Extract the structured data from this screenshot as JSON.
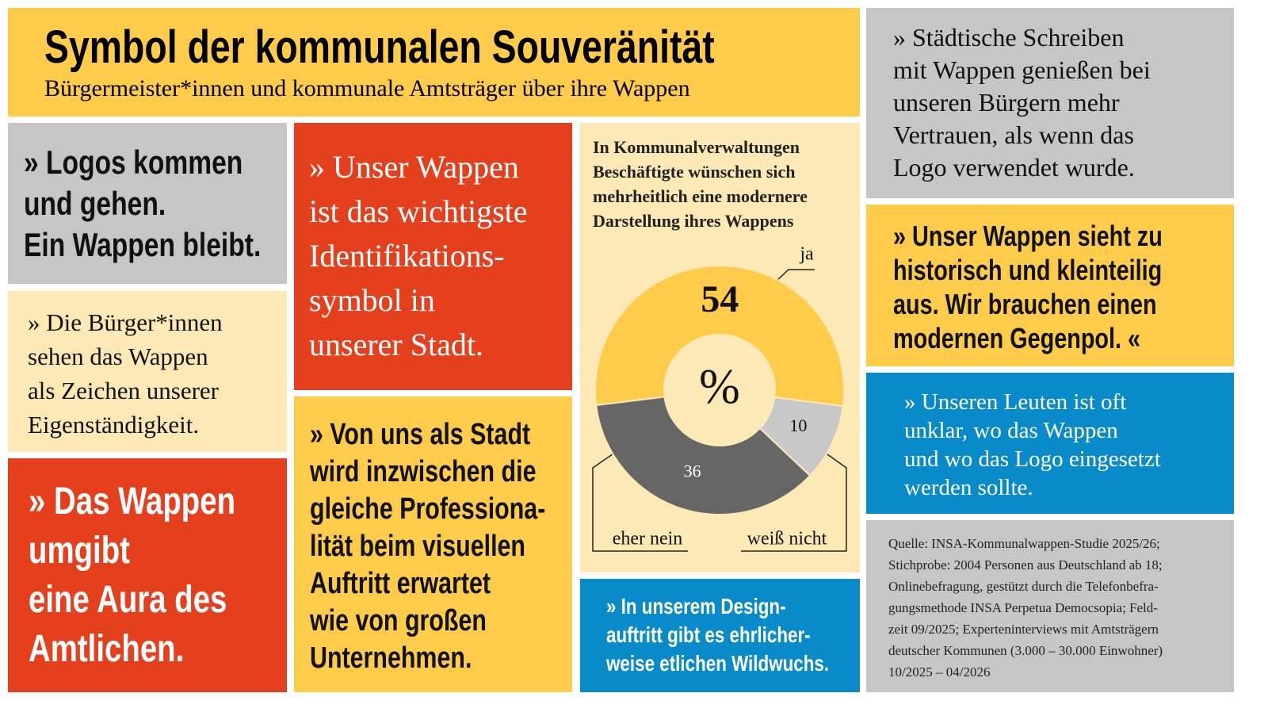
{
  "header": {
    "title": "Symbol der kommunalen Souveränität",
    "subtitle": "Bürgermeister*innen und kommunale Amtsträger über ihre Wappen"
  },
  "quotes": [
    {
      "lines": [
        "» Logos kommen",
        "und gehen.",
        "Ein Wappen bleibt."
      ]
    },
    {
      "lines": [
        "» Die Bürger*innen",
        "sehen das Wappen",
        "als Zeichen unserer",
        "Eigenständigkeit."
      ]
    },
    {
      "lines": [
        "» Das Wappen",
        "umgibt",
        "eine Aura des",
        "Amtlichen."
      ]
    },
    {
      "lines": [
        "» Unser Wappen",
        "ist das wichtigste",
        "Identifikations-",
        "symbol in",
        "unserer Stadt."
      ]
    },
    {
      "lines": [
        "» Von uns als Stadt",
        "wird inzwischen die",
        "gleiche Professiona-",
        "lität beim visuellen",
        "Auftritt erwartet",
        "wie von großen",
        "Unternehmen."
      ]
    },
    {
      "lines": [
        "» In unserem Design-",
        "auftritt gibt es ehrlicher-",
        "weise etlichen Wildwuchs."
      ]
    },
    {
      "lines": [
        "» Städtische Schreiben",
        "mit Wappen genießen bei",
        "unseren Bürgern mehr",
        "Vertrauen, als wenn das",
        "Logo verwendet wurde."
      ]
    },
    {
      "lines": [
        "» Unser Wappen sieht zu",
        "historisch und kleinteilig",
        "aus. Wir brauchen einen",
        "modernen Gegenpol. «"
      ]
    },
    {
      "lines": [
        "» Unseren Leuten ist oft",
        "unklar, wo das Wappen",
        "und wo das Logo eingesetzt",
        "werden sollte."
      ]
    }
  ],
  "chart_data": {
    "type": "donut",
    "title_lines": [
      "In Kommunalverwaltungen",
      "Beschäftigte wünschen sich",
      "mehrheitlich eine modernere",
      "Darstellung ihres Wappens"
    ],
    "center_label": "%",
    "categories": [
      "ja",
      "weiß nicht",
      "eher nein"
    ],
    "values": [
      54,
      10,
      36
    ],
    "colors": [
      "#fecb4a",
      "#c8c8c8",
      "#666666"
    ]
  },
  "source": {
    "lines": [
      "Quelle: INSA-Kommunalwappen-Studie 2025/26;",
      "Stichprobe: 2004 Personen aus Deutschland ab 18;",
      "Onlinebefragung, gestützt durch die Telefonbefra-",
      "gungsmethode INSA Perpetua Democsopia; Feld-",
      "zeit 09/2025; Experteninterviews mit Amtsträgern",
      "deutscher Kommunen (3.000 – 30.000 Einwohner)",
      "10/2025 – 04/2026"
    ]
  }
}
